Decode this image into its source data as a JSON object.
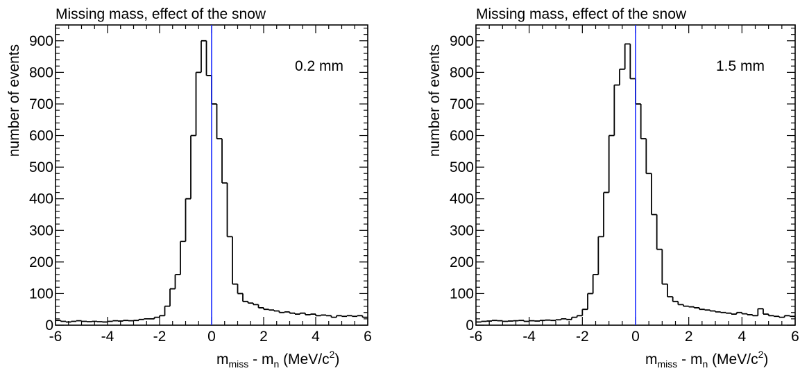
{
  "colors": {
    "background": "#ffffff",
    "histogram": "#000000",
    "marker_line": "#1a2bff"
  },
  "chart_data": [
    {
      "type": "bar",
      "title": "Missing mass, effect of the snow",
      "annotation": "0.2 mm",
      "xlabel_main": "m",
      "xlabel_sub1": "miss",
      "xlabel_mid": " - m",
      "xlabel_sub2": "n",
      "xlabel_unit": " (MeV/c",
      "xlabel_sup": "2",
      "xlabel_end": ")",
      "ylabel": "number of events",
      "xlim": [
        -6,
        6
      ],
      "ylim": [
        0,
        950
      ],
      "xticks": [
        "-6",
        "-4",
        "-2",
        "0",
        "2",
        "4",
        "6"
      ],
      "yticks": [
        "0",
        "100",
        "200",
        "300",
        "400",
        "500",
        "600",
        "700",
        "800",
        "900"
      ],
      "marker_x": 0,
      "bin_edges_start": -6,
      "bin_width": 0.2,
      "values": [
        15,
        12,
        10,
        12,
        14,
        12,
        11,
        12,
        11,
        10,
        12,
        14,
        13,
        15,
        14,
        15,
        18,
        20,
        20,
        25,
        30,
        60,
        115,
        160,
        265,
        400,
        600,
        800,
        900,
        790,
        700,
        590,
        450,
        280,
        130,
        100,
        75,
        70,
        65,
        55,
        50,
        48,
        45,
        40,
        42,
        38,
        35,
        38,
        33,
        35,
        30,
        32,
        30,
        25,
        30,
        28,
        30,
        28,
        30,
        25
      ]
    },
    {
      "type": "bar",
      "title": "Missing mass, effect of the snow",
      "annotation": "1.5 mm",
      "xlabel_main": "m",
      "xlabel_sub1": "miss",
      "xlabel_mid": " - m",
      "xlabel_sub2": "n",
      "xlabel_unit": " (MeV/c",
      "xlabel_sup": "2",
      "xlabel_end": ")",
      "ylabel": "number of events",
      "xlim": [
        -6,
        6
      ],
      "ylim": [
        0,
        950
      ],
      "xticks": [
        "-6",
        "-4",
        "-2",
        "0",
        "2",
        "4",
        "6"
      ],
      "yticks": [
        "0",
        "100",
        "200",
        "300",
        "400",
        "500",
        "600",
        "700",
        "800",
        "900"
      ],
      "marker_x": 0,
      "bin_edges_start": -6,
      "bin_width": 0.2,
      "values": [
        10,
        12,
        13,
        15,
        14,
        12,
        13,
        14,
        15,
        12,
        14,
        13,
        15,
        16,
        15,
        17,
        20,
        18,
        25,
        30,
        50,
        100,
        160,
        280,
        420,
        600,
        760,
        810,
        890,
        780,
        700,
        590,
        480,
        350,
        240,
        130,
        90,
        75,
        65,
        60,
        58,
        55,
        50,
        48,
        45,
        42,
        40,
        38,
        35,
        40,
        36,
        33,
        30,
        52,
        35,
        30,
        28,
        25,
        30,
        28
      ]
    }
  ]
}
